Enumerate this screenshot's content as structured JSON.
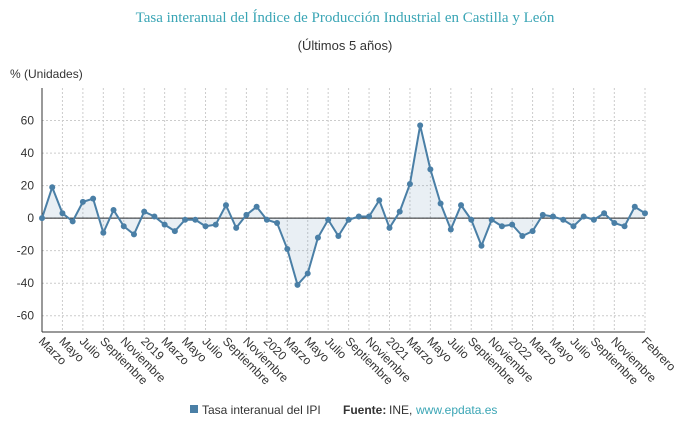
{
  "chart_data": {
    "type": "line",
    "title": "Tasa interanual del Índice de Producción Industrial en Castilla y León",
    "subtitle": "(Últimos 5 años)",
    "y_label": "% (Unidades)",
    "categories": [
      "Marzo",
      null,
      "Mayo",
      null,
      "Julio",
      null,
      "Septiembre",
      null,
      "Noviembre",
      null,
      "2019",
      null,
      "Marzo",
      null,
      "Mayo",
      null,
      "Julio",
      null,
      "Septiembre",
      null,
      "Noviembre",
      null,
      "2020",
      null,
      "Marzo",
      null,
      "Mayo",
      null,
      "Julio",
      null,
      "Septiembre",
      null,
      "Noviembre",
      null,
      "2021",
      null,
      "Marzo",
      null,
      "Mayo",
      null,
      "Julio",
      null,
      "Septiembre",
      null,
      "Noviembre",
      null,
      "2022",
      null,
      "Marzo",
      null,
      "Mayo",
      null,
      "Julio",
      null,
      "Septiembre",
      null,
      "Noviembre",
      null,
      null,
      "Febrero"
    ],
    "series": [
      {
        "name": "Tasa interanual del IPI",
        "color": "#4a7fa6",
        "values": [
          0,
          19,
          3,
          -2,
          10,
          12,
          -9,
          5,
          -5,
          -10,
          4,
          1,
          -4,
          -8,
          -1,
          -1,
          -5,
          -4,
          8,
          -6,
          2,
          7,
          -1,
          -3,
          -19,
          -41,
          -34,
          -12,
          -1,
          -11,
          -1,
          1,
          1,
          11,
          -6,
          4,
          21,
          57,
          30,
          9,
          -7,
          8,
          -1,
          -17,
          -1,
          -5,
          -4,
          -11,
          -8,
          2,
          1,
          -1,
          -5,
          1,
          -1,
          3,
          -3,
          -5,
          7,
          3
        ]
      }
    ],
    "ylim": [
      -70,
      80
    ],
    "yticks": [
      -60,
      -40,
      -20,
      0,
      20,
      40,
      60
    ],
    "grid": true,
    "source_label": "Fuente:",
    "source_name": "INE,",
    "source_url": "www.epdata.es"
  }
}
